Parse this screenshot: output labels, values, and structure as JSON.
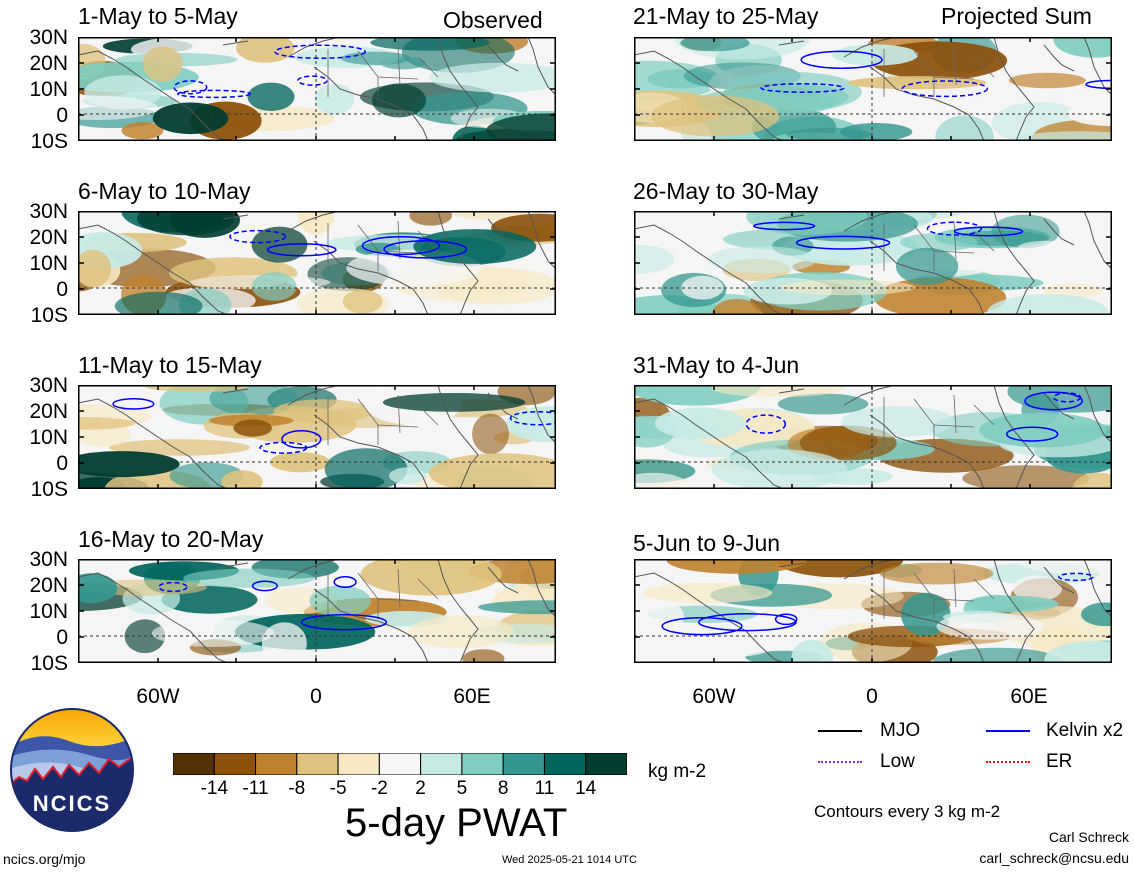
{
  "headers": {
    "left": "Observed",
    "right": "Projected Sum"
  },
  "panels": [
    {
      "title": "1-May to 5-May",
      "column": "left",
      "row": 0
    },
    {
      "title": "6-May to 10-May",
      "column": "left",
      "row": 1
    },
    {
      "title": "11-May to 15-May",
      "column": "left",
      "row": 2
    },
    {
      "title": "16-May to 20-May",
      "column": "left",
      "row": 3
    },
    {
      "title": "21-May to 25-May",
      "column": "right",
      "row": 0
    },
    {
      "title": "26-May to 30-May",
      "column": "right",
      "row": 1
    },
    {
      "title": "31-May to 4-Jun",
      "column": "right",
      "row": 2
    },
    {
      "title": "5-Jun to 9-Jun",
      "column": "right",
      "row": 3
    }
  ],
  "lat_labels": [
    "30N",
    "20N",
    "10N",
    "0",
    "10S"
  ],
  "lon_labels": [
    "60W",
    "0",
    "60E"
  ],
  "colorbar": {
    "colors": [
      "#543005",
      "#8c510a",
      "#bf812d",
      "#dfc27d",
      "#f6e8c3",
      "#f5f5f5",
      "#c7eae5",
      "#80cdc1",
      "#35978f",
      "#01665e",
      "#003c30"
    ],
    "ticks": [
      "-14",
      "-11",
      "-8",
      "-5",
      "-2",
      "2",
      "5",
      "8",
      "11",
      "14"
    ],
    "units": "kg m-2",
    "label": "5-day PWAT"
  },
  "legend": {
    "items": [
      {
        "label": "MJO",
        "color": "#000000"
      },
      {
        "label": "Kelvin x2",
        "color": "#0000ff"
      },
      {
        "label": "Low",
        "color": "#8a2be2"
      },
      {
        "label": "ER",
        "color": "#ff0000"
      }
    ],
    "note": "Contours every 3 kg m-2"
  },
  "logo": {
    "text": "NCICS"
  },
  "footer": {
    "left": "ncics.org/mjo",
    "center": "Wed 2025-05-21 1014 UTC",
    "author": "Carl Schreck",
    "email": "carl_schreck@ncsu.edu"
  }
}
